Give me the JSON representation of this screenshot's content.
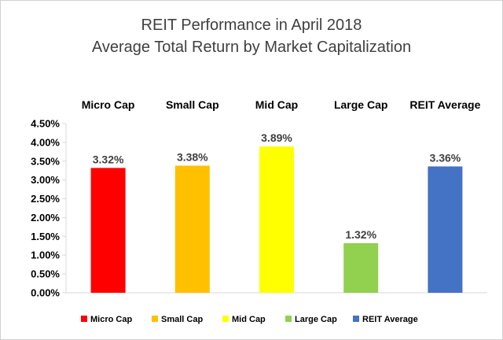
{
  "chart_data": {
    "type": "bar",
    "title": "REIT Performance  in April 2018",
    "subtitle": "Average Total Return by Market Capitalization",
    "categories": [
      "Micro Cap",
      "Small Cap",
      "Mid Cap",
      "Large Cap",
      "REIT Average"
    ],
    "values": [
      3.32,
      3.38,
      3.89,
      1.32,
      3.36
    ],
    "data_labels": [
      "3.32%",
      "3.38%",
      "3.89%",
      "1.32%",
      "3.36%"
    ],
    "colors": [
      "#ff0000",
      "#ffc000",
      "#ffff00",
      "#92d050",
      "#4472c4"
    ],
    "ylim": [
      0,
      4.5
    ],
    "yticks": [
      0,
      0.5,
      1.0,
      1.5,
      2.0,
      2.5,
      3.0,
      3.5,
      4.0,
      4.5
    ],
    "ytick_labels": [
      "0.00%",
      "0.50%",
      "1.00%",
      "1.50%",
      "2.00%",
      "2.50%",
      "3.00%",
      "3.50%",
      "4.00%",
      "4.50%"
    ],
    "xlabel": "",
    "ylabel": "",
    "category_labels_position": "top",
    "grid": false,
    "legend": {
      "position": "bottom",
      "entries": [
        "Micro Cap",
        "Small Cap",
        "Mid Cap",
        "Large Cap",
        "REIT Average"
      ]
    }
  }
}
